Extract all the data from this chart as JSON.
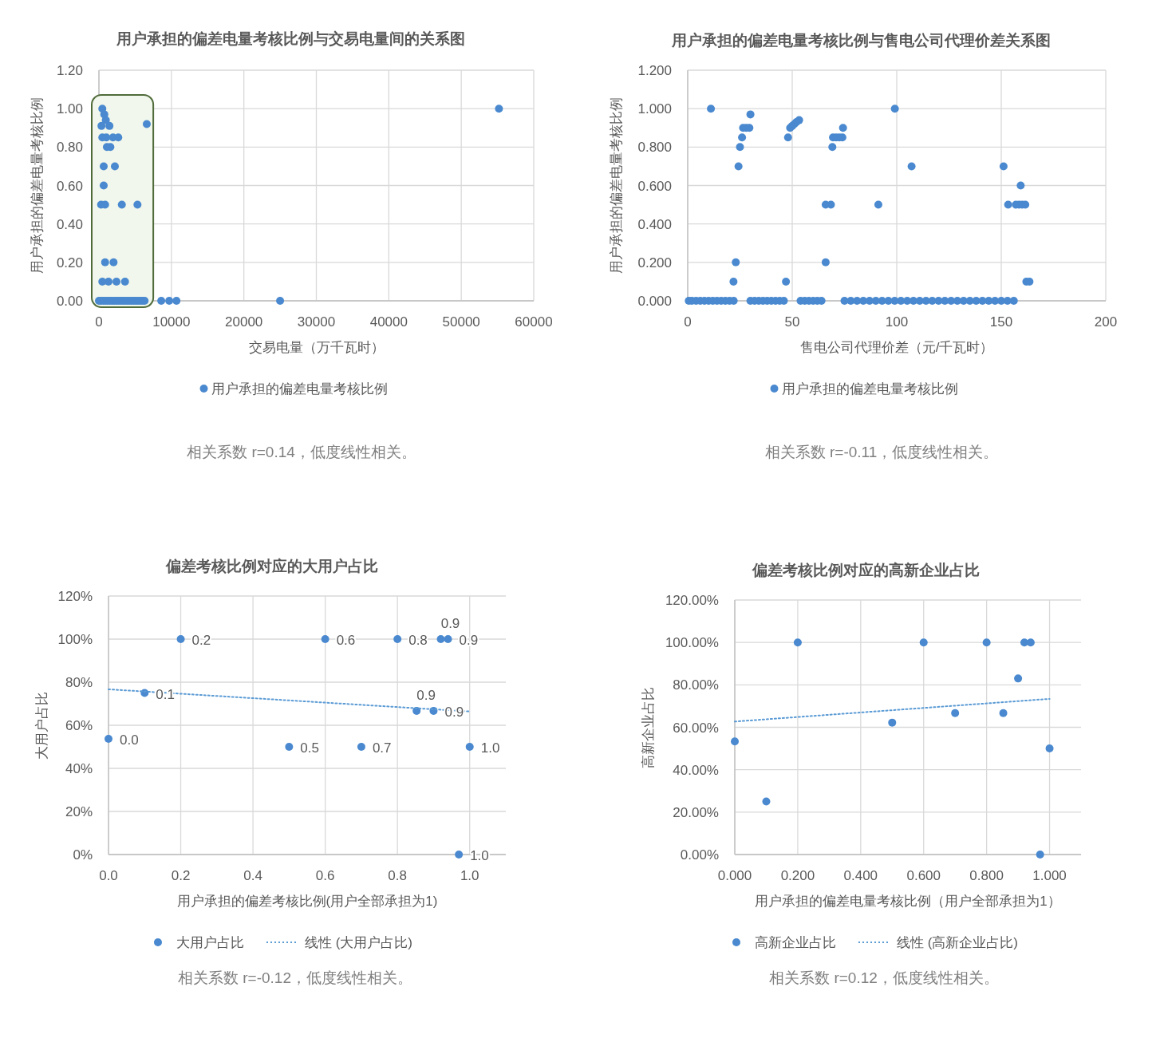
{
  "chart_data": [
    {
      "type": "scatter",
      "title": "用户承担的偏差电量考核比例与交易电量间的关系图",
      "xlabel": "交易电量（万千瓦时）",
      "ylabel": "用户承担的偏差电量考核比例",
      "xlim": [
        0,
        60000
      ],
      "ylim": [
        0,
        1.2
      ],
      "xticks": [
        0,
        10000,
        20000,
        30000,
        40000,
        50000,
        60000
      ],
      "yticks": [
        {
          "value": 0,
          "label": "0.00"
        },
        {
          "value": 0.2,
          "label": "0.20"
        },
        {
          "value": 0.4,
          "label": "0.40"
        },
        {
          "value": 0.6,
          "label": "0.60"
        },
        {
          "value": 0.8,
          "label": "0.80"
        },
        {
          "value": 1,
          "label": "1.00"
        },
        {
          "value": 1.2,
          "label": "1.20"
        }
      ],
      "grid": true,
      "legend": "bottom",
      "marker": "circle",
      "annotations": [
        "相关系数 r=0.14，低度线性相关。"
      ],
      "bands": [
        {
          "axis": "x",
          "from": 0,
          "to": 7500,
          "color": "#f1f7ec"
        }
      ],
      "series": [
        {
          "name": "用户承担的偏差电量考核比例",
          "color": "#4a89cf",
          "x": [
            470,
            740,
            950,
            350,
            1450,
            6600,
            470,
            1020,
            1940,
            2670,
            1100,
            1580,
            660,
            2200,
            660,
            300,
            850,
            3160,
            5320,
            850,
            2020,
            470,
            1320,
            2420,
            3600,
            55200,
            0,
            300,
            600,
            900,
            1200,
            1500,
            1800,
            2100,
            2400,
            2700,
            3000,
            3300,
            3600,
            3900,
            4200,
            4500,
            4800,
            5100,
            5400,
            5700,
            6000,
            6300,
            8600,
            9700,
            10700,
            25000
          ],
          "values": [
            1.0,
            0.97,
            0.94,
            0.91,
            0.91,
            0.92,
            0.85,
            0.85,
            0.85,
            0.85,
            0.8,
            0.8,
            0.7,
            0.7,
            0.6,
            0.5,
            0.5,
            0.5,
            0.5,
            0.2,
            0.2,
            0.1,
            0.1,
            0.1,
            0.1,
            1.0,
            0,
            0,
            0,
            0,
            0,
            0,
            0,
            0,
            0,
            0,
            0,
            0,
            0,
            0,
            0,
            0,
            0,
            0,
            0,
            0,
            0,
            0,
            0,
            0,
            0,
            0
          ]
        }
      ]
    },
    {
      "type": "scatter",
      "title": "用户承担的偏差电量考核比例与售电公司代理价差关系图",
      "xlabel": "售电公司代理价差（元/千瓦时）",
      "ylabel": "用户承担的偏差电量考核比例",
      "xlim": [
        0,
        200
      ],
      "ylim": [
        0,
        1.2
      ],
      "xticks": [
        0,
        50,
        100,
        150,
        200
      ],
      "yticks": [
        {
          "value": 0,
          "label": "0.000"
        },
        {
          "value": 0.2,
          "label": "0.200"
        },
        {
          "value": 0.4,
          "label": "0.400"
        },
        {
          "value": 0.6,
          "label": "0.600"
        },
        {
          "value": 0.8,
          "label": "0.800"
        },
        {
          "value": 1,
          "label": "1.000"
        },
        {
          "value": 1.2,
          "label": "1.200"
        }
      ],
      "grid": true,
      "legend": "bottom",
      "marker": "circle",
      "annotations": [
        "相关系数 r=-0.11，低度线性相关。"
      ],
      "series": [
        {
          "name": "用户承担的偏差电量考核比例",
          "color": "#4a89cf",
          "x": [
            11.1,
            30.0,
            26.5,
            28,
            29.5,
            26,
            25,
            24.3,
            23,
            21.9,
            47,
            48,
            49,
            50,
            51,
            52,
            53.3,
            69.2,
            69.5,
            71,
            72.5,
            74,
            74.3,
            66,
            68.5,
            66,
            91.2,
            99.1,
            107.1,
            151.1,
            159.3,
            153.3,
            157,
            158.5,
            160,
            161.5,
            162,
            163.5,
            0.5,
            2,
            4,
            6,
            8,
            10,
            12,
            14,
            16,
            18,
            20,
            22,
            30,
            32,
            34,
            36,
            38,
            40,
            42,
            44,
            46,
            54,
            56,
            58,
            60,
            62,
            64,
            75,
            78,
            81,
            84,
            87,
            90,
            93,
            96,
            99,
            102,
            105,
            108,
            111,
            114,
            117,
            120,
            123,
            126,
            129,
            132,
            135,
            138,
            141,
            144,
            147,
            150,
            153,
            156
          ],
          "values": [
            1.0,
            0.97,
            0.9,
            0.9,
            0.9,
            0.85,
            0.8,
            0.7,
            0.2,
            0.1,
            0.1,
            0.85,
            0.9,
            0.91,
            0.92,
            0.93,
            0.94,
            0.8,
            0.85,
            0.85,
            0.85,
            0.85,
            0.9,
            0.5,
            0.5,
            0.2,
            0.5,
            1.0,
            0.7,
            0.7,
            0.6,
            0.5,
            0.5,
            0.5,
            0.5,
            0.5,
            0.1,
            0.1,
            0,
            0,
            0,
            0,
            0,
            0,
            0,
            0,
            0,
            0,
            0,
            0,
            0,
            0,
            0,
            0,
            0,
            0,
            0,
            0,
            0,
            0,
            0,
            0,
            0,
            0,
            0,
            0,
            0,
            0,
            0,
            0,
            0,
            0,
            0,
            0,
            0,
            0,
            0,
            0,
            0,
            0,
            0,
            0,
            0,
            0,
            0,
            0,
            0,
            0,
            0,
            0,
            0,
            0,
            0
          ]
        }
      ]
    },
    {
      "type": "scatter",
      "title": "偏差考核比例对应的大用户占比",
      "xlabel": "用户承担的偏差考核比例(用户全部承担为1)",
      "ylabel": "大用户占比",
      "xlim": [
        0,
        1.1
      ],
      "ylim": [
        0,
        120
      ],
      "xticks": [
        {
          "value": 0,
          "label": "0.0"
        },
        0.2,
        0.4,
        0.6,
        0.8,
        {
          "value": 1,
          "label": "1.0"
        }
      ],
      "yticks": [
        {
          "value": 0,
          "label": "0%"
        },
        {
          "value": 20,
          "label": "20%"
        },
        {
          "value": 40,
          "label": "40%"
        },
        {
          "value": 60,
          "label": "60%"
        },
        {
          "value": 80,
          "label": "80%"
        },
        {
          "value": 100,
          "label": "100%"
        },
        {
          "value": 120,
          "label": "120%"
        }
      ],
      "grid": true,
      "legend": "bottom",
      "marker": "circle",
      "annotations": [
        "相关系数 r=-0.12，低度线性相关。",
        {
          "text": "0.0",
          "x": 0,
          "y": 53.7
        },
        {
          "text": "0.1",
          "x": 0.1,
          "y": 75
        },
        {
          "text": "0.2",
          "x": 0.2,
          "y": 100
        },
        {
          "text": "0.6",
          "x": 0.6,
          "y": 100
        },
        {
          "text": "0.8",
          "x": 0.8,
          "y": 100
        },
        {
          "text": "0.9",
          "x": 0.92,
          "y": 100
        },
        {
          "text": "0.9",
          "x": 0.94,
          "y": 100
        },
        {
          "text": "0.9",
          "x": 0.853,
          "y": 66.7
        },
        {
          "text": "0.9",
          "x": 0.9,
          "y": 66.7
        },
        {
          "text": "0.5",
          "x": 0.5,
          "y": 50
        },
        {
          "text": "0.7",
          "x": 0.7,
          "y": 50
        },
        {
          "text": "1.0",
          "x": 1.0,
          "y": 50
        },
        {
          "text": "1.0",
          "x": 0.97,
          "y": 0
        }
      ],
      "series": [
        {
          "name": "大用户占比",
          "color": "#4a89cf",
          "x": [
            0,
            0.1,
            0.2,
            0.6,
            0.8,
            0.92,
            0.94,
            0.853,
            0.9,
            0.5,
            0.7,
            1.0,
            0.97
          ],
          "values": [
            53.7,
            75,
            100,
            100,
            100,
            100,
            100,
            66.7,
            66.7,
            50,
            50,
            50,
            0
          ]
        },
        {
          "name": "线性 (大用户占比)",
          "type": "line",
          "line_style": "dotted",
          "marker": "none",
          "color": "#5b9bd5",
          "x": [
            0,
            1.0
          ],
          "values": [
            76.7,
            66.4
          ]
        }
      ]
    },
    {
      "type": "scatter",
      "title": "偏差考核比例对应的高新企业占比",
      "xlabel": "用户承担的偏差电量考核比例（用户全部承担为1）",
      "ylabel": "高新企业占比",
      "xlim": [
        0,
        1.1
      ],
      "ylim": [
        0,
        120
      ],
      "xticks": [
        {
          "value": 0,
          "label": "0.000"
        },
        {
          "value": 0.2,
          "label": "0.200"
        },
        {
          "value": 0.4,
          "label": "0.400"
        },
        {
          "value": 0.6,
          "label": "0.600"
        },
        {
          "value": 0.8,
          "label": "0.800"
        },
        {
          "value": 1,
          "label": "1.000"
        }
      ],
      "yticks": [
        {
          "value": 0,
          "label": "0.00%"
        },
        {
          "value": 20,
          "label": "20.00%"
        },
        {
          "value": 40,
          "label": "40.00%"
        },
        {
          "value": 60,
          "label": "60.00%"
        },
        {
          "value": 80,
          "label": "80.00%"
        },
        {
          "value": 100,
          "label": "100.00%"
        },
        {
          "value": 120,
          "label": "120.00%"
        }
      ],
      "grid": true,
      "legend": "bottom",
      "marker": "circle",
      "annotations": [
        "相关系数 r=0.12，低度线性相关。"
      ],
      "series": [
        {
          "name": "高新企业占比",
          "color": "#4a89cf",
          "x": [
            0,
            0.1,
            0.2,
            0.5,
            0.6,
            0.7,
            0.8,
            0.853,
            0.9,
            0.92,
            0.94,
            1.0,
            0.97
          ],
          "values": [
            53.3,
            25,
            100,
            62.2,
            100,
            66.7,
            100,
            66.7,
            83,
            100,
            100,
            50,
            0
          ]
        },
        {
          "name": "线性 (高新企业占比)",
          "type": "line",
          "line_style": "dotted",
          "marker": "none",
          "color": "#5b9bd5",
          "x": [
            0,
            1.0
          ],
          "values": [
            62.7,
            73.4
          ]
        }
      ]
    }
  ]
}
